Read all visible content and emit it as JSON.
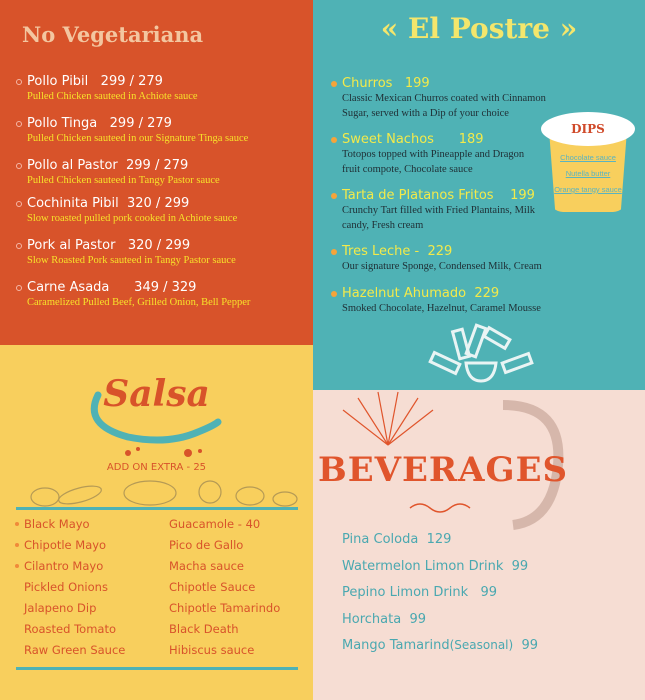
{
  "no_vegetariana": {
    "title": "No Vegetariana",
    "items": [
      {
        "name": "Pollo Pibil   299 / 279",
        "desc": "Pulled Chicken sauteed in Achiote sauce"
      },
      {
        "name": "Pollo Tinga   299 / 279",
        "desc": "Pulled Chicken sauteed in our Signature Tinga sauce"
      },
      {
        "name": "Pollo al Pastor  299 / 279",
        "desc": "Pulled Chicken sauteed in Tangy Pastor sauce"
      },
      {
        "name": "Cochinita Pibil  320 / 299",
        "desc": "Slow roasted pulled pork cooked in Achiote sauce"
      },
      {
        "name": "Pork al Pastor   320 / 299",
        "desc": "Slow Roasted Pork sauteed in Tangy Pastor sauce"
      },
      {
        "name": "Carne Asada      349 / 329",
        "desc": "Caramelized Pulled Beef, Grilled Onion, Bell Pepper"
      }
    ]
  },
  "el_postre": {
    "title": "El Postre",
    "items": [
      {
        "name": "Churros   199",
        "desc": "Classic Mexican Churros coated with Cinnamon Sugar, served with a Dip of your choice"
      },
      {
        "name": "Sweet Nachos      189",
        "desc": "Totopos topped with Pineapple and Dragon fruit compote, Chocolate sauce"
      },
      {
        "name": "Tarta de Platanos Fritos    199",
        "desc": "Crunchy Tart filled with Fried Plantains, Milk candy, Fresh cream"
      },
      {
        "name": "Tres Leche -  229",
        "desc": "Our signature Sponge, Condensed Milk, Cream"
      },
      {
        "name": "Hazelnut Ahumado  229",
        "desc": "Smoked Chocolate, Hazelnut, Caramel Mousse"
      }
    ],
    "dips": {
      "title": "DIPS",
      "items": [
        "Chocolate sauce",
        "Nutella butter",
        "Orange tangy sauce"
      ]
    }
  },
  "salsa": {
    "title": "Salsa",
    "addon": "ADD ON EXTRA - 25",
    "left": [
      "Black Mayo",
      "Chipotle Mayo",
      "Cilantro Mayo",
      "Pickled Onions",
      "Jalapeno Dip",
      "Roasted Tomato",
      "Raw Green Sauce"
    ],
    "right": [
      "Guacamole - 40",
      "Pico de Gallo",
      "Macha sauce",
      "Chipotle Sauce",
      "Chipotle Tamarindo",
      "Black Death",
      "Hibiscus sauce"
    ]
  },
  "beverages": {
    "title": "BEVERAGES",
    "items": [
      {
        "name": "Pina Coloda  129"
      },
      {
        "name": "Watermelon Limon Drink  99"
      },
      {
        "name": "Pepino Limon Drink   99"
      },
      {
        "name": "Horchata  99"
      },
      {
        "name": "Mango Tamarind",
        "note": "(Seasonal)",
        "price": "  99"
      }
    ]
  },
  "colors": {
    "orange": "#d8532a",
    "teal": "#4fb2b5",
    "yellow": "#f8cf5d",
    "pink": "#f6ddd3"
  }
}
